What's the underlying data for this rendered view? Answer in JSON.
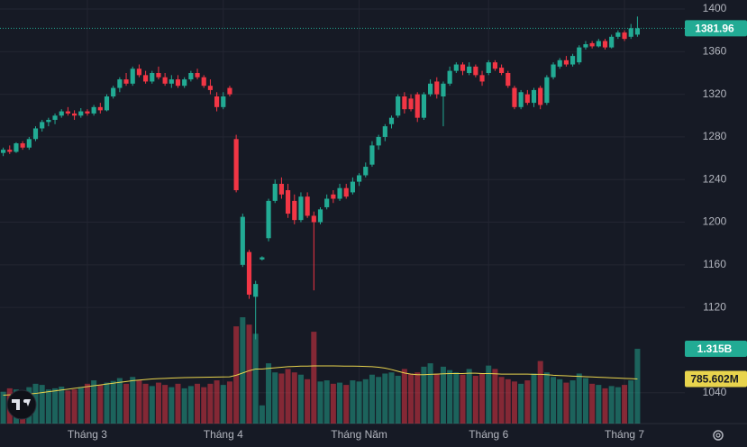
{
  "chart_data": {
    "type": "candlestick",
    "categories": [
      null,
      null,
      null,
      null,
      null,
      null,
      null,
      null,
      null,
      null,
      null,
      null,
      null,
      "Tháng 3",
      null,
      null,
      null,
      null,
      null,
      null,
      null,
      null,
      null,
      null,
      null,
      null,
      null,
      null,
      null,
      null,
      null,
      null,
      null,
      null,
      "Tháng 4",
      null,
      null,
      null,
      null,
      null,
      null,
      null,
      null,
      null,
      null,
      null,
      null,
      null,
      null,
      null,
      null,
      null,
      null,
      null,
      null,
      "Tháng Năm",
      null,
      null,
      null,
      null,
      null,
      null,
      null,
      null,
      null,
      null,
      null,
      null,
      null,
      null,
      null,
      null,
      null,
      null,
      null,
      "Tháng 6",
      null,
      null,
      null,
      null,
      null,
      null,
      null,
      null,
      null,
      null,
      null,
      null,
      null,
      null,
      null,
      null,
      null,
      null,
      null,
      null,
      "Tháng 7",
      null,
      null
    ],
    "candles": [
      [
        1265,
        1270,
        1262,
        1268
      ],
      [
        1268,
        1272,
        1264,
        1266
      ],
      [
        1266,
        1275,
        1265,
        1274
      ],
      [
        1274,
        1276,
        1268,
        1270
      ],
      [
        1270,
        1280,
        1268,
        1278
      ],
      [
        1278,
        1290,
        1276,
        1288
      ],
      [
        1288,
        1296,
        1285,
        1294
      ],
      [
        1294,
        1298,
        1290,
        1296
      ],
      [
        1296,
        1302,
        1292,
        1300
      ],
      [
        1300,
        1306,
        1298,
        1304
      ],
      [
        1304,
        1308,
        1300,
        1302
      ],
      [
        1302,
        1305,
        1296,
        1300
      ],
      [
        1300,
        1307,
        1298,
        1304
      ],
      [
        1304,
        1306,
        1300,
        1302
      ],
      [
        1302,
        1310,
        1300,
        1308
      ],
      [
        1308,
        1312,
        1302,
        1305
      ],
      [
        1305,
        1320,
        1304,
        1318
      ],
      [
        1318,
        1328,
        1316,
        1326
      ],
      [
        1326,
        1336,
        1322,
        1334
      ],
      [
        1334,
        1340,
        1328,
        1330
      ],
      [
        1330,
        1346,
        1328,
        1344
      ],
      [
        1344,
        1348,
        1336,
        1338
      ],
      [
        1338,
        1342,
        1330,
        1332
      ],
      [
        1332,
        1342,
        1330,
        1340
      ],
      [
        1340,
        1346,
        1334,
        1336
      ],
      [
        1336,
        1340,
        1328,
        1330
      ],
      [
        1330,
        1338,
        1326,
        1334
      ],
      [
        1334,
        1338,
        1326,
        1328
      ],
      [
        1328,
        1336,
        1326,
        1334
      ],
      [
        1334,
        1342,
        1332,
        1340
      ],
      [
        1340,
        1344,
        1334,
        1336
      ],
      [
        1336,
        1338,
        1326,
        1328
      ],
      [
        1328,
        1334,
        1320,
        1324
      ],
      [
        1318,
        1322,
        1304,
        1308
      ],
      [
        1308,
        1322,
        1306,
        1318
      ],
      [
        1326,
        1328,
        1318,
        1320
      ],
      [
        1278,
        1282,
        1228,
        1230
      ],
      [
        1160,
        1208,
        1158,
        1205
      ],
      [
        1172,
        1174,
        1128,
        1132
      ],
      [
        1130,
        1145,
        1090,
        1142
      ],
      [
        1165,
        1168,
        1164,
        1167
      ],
      [
        1185,
        1222,
        1182,
        1220
      ],
      [
        1220,
        1240,
        1218,
        1236
      ],
      [
        1236,
        1242,
        1222,
        1226
      ],
      [
        1230,
        1236,
        1204,
        1208
      ],
      [
        1220,
        1226,
        1198,
        1202
      ],
      [
        1202,
        1228,
        1200,
        1224
      ],
      [
        1224,
        1228,
        1204,
        1206
      ],
      [
        1206,
        1210,
        1136,
        1200
      ],
      [
        1200,
        1214,
        1198,
        1212
      ],
      [
        1214,
        1226,
        1212,
        1222
      ],
      [
        1226,
        1230,
        1218,
        1222
      ],
      [
        1222,
        1236,
        1220,
        1232
      ],
      [
        1232,
        1236,
        1222,
        1224
      ],
      [
        1228,
        1242,
        1226,
        1238
      ],
      [
        1238,
        1246,
        1234,
        1244
      ],
      [
        1244,
        1256,
        1242,
        1252
      ],
      [
        1254,
        1276,
        1252,
        1272
      ],
      [
        1272,
        1282,
        1268,
        1280
      ],
      [
        1280,
        1292,
        1276,
        1290
      ],
      [
        1292,
        1300,
        1288,
        1298
      ],
      [
        1300,
        1320,
        1298,
        1318
      ],
      [
        1318,
        1322,
        1302,
        1306
      ],
      [
        1316,
        1320,
        1304,
        1306
      ],
      [
        1320,
        1322,
        1294,
        1298
      ],
      [
        1298,
        1322,
        1296,
        1320
      ],
      [
        1320,
        1334,
        1318,
        1330
      ],
      [
        1332,
        1336,
        1316,
        1320
      ],
      [
        1318,
        1332,
        1290,
        1330
      ],
      [
        1330,
        1346,
        1328,
        1342
      ],
      [
        1342,
        1350,
        1340,
        1348
      ],
      [
        1348,
        1350,
        1338,
        1342
      ],
      [
        1340,
        1350,
        1338,
        1346
      ],
      [
        1346,
        1348,
        1336,
        1338
      ],
      [
        1338,
        1342,
        1328,
        1332
      ],
      [
        1340,
        1352,
        1338,
        1350
      ],
      [
        1350,
        1352,
        1342,
        1344
      ],
      [
        1345,
        1348,
        1338,
        1340
      ],
      [
        1340,
        1342,
        1326,
        1328
      ],
      [
        1326,
        1328,
        1306,
        1308
      ],
      [
        1308,
        1324,
        1306,
        1322
      ],
      [
        1320,
        1324,
        1310,
        1312
      ],
      [
        1312,
        1326,
        1308,
        1324
      ],
      [
        1326,
        1328,
        1306,
        1310
      ],
      [
        1312,
        1338,
        1310,
        1336
      ],
      [
        1336,
        1350,
        1334,
        1348
      ],
      [
        1346,
        1354,
        1344,
        1352
      ],
      [
        1352,
        1356,
        1346,
        1348
      ],
      [
        1348,
        1358,
        1346,
        1356
      ],
      [
        1350,
        1366,
        1348,
        1364
      ],
      [
        1364,
        1370,
        1362,
        1367
      ],
      [
        1368,
        1370,
        1363,
        1365
      ],
      [
        1365,
        1372,
        1364,
        1370
      ],
      [
        1370,
        1372,
        1362,
        1364
      ],
      [
        1364,
        1376,
        1363,
        1374
      ],
      [
        1374,
        1380,
        1372,
        1378
      ],
      [
        1378,
        1380,
        1370,
        1372
      ],
      [
        1374,
        1386,
        1372,
        1382
      ],
      [
        1376,
        1393,
        1374,
        1381.96
      ]
    ],
    "ylim": [
      1011,
      1408.5
    ],
    "yticks": [
      1040,
      1120,
      1160,
      1200,
      1240,
      1280,
      1320,
      1360,
      1400
    ],
    "up_color": "#22ab94",
    "down_color": "#f23645",
    "grid": true,
    "last_price_line": true,
    "volume": {
      "values": [
        560,
        620,
        600,
        580,
        640,
        700,
        680,
        600,
        620,
        650,
        580,
        600,
        640,
        700,
        760,
        680,
        720,
        750,
        800,
        700,
        820,
        760,
        700,
        660,
        720,
        680,
        640,
        700,
        620,
        660,
        700,
        640,
        700,
        760,
        680,
        740,
        1710,
        1870,
        1740,
        1580,
        320,
        1060,
        900,
        880,
        960,
        900,
        860,
        780,
        1615,
        740,
        760,
        700,
        720,
        680,
        760,
        740,
        780,
        860,
        820,
        880,
        900,
        840,
        960,
        880,
        900,
        1000,
        1060,
        880,
        1000,
        940,
        900,
        860,
        960,
        840,
        880,
        1020,
        960,
        820,
        780,
        740,
        700,
        760,
        880,
        1100,
        900,
        820,
        780,
        720,
        760,
        880,
        800,
        700,
        680,
        620,
        660,
        640,
        680,
        760,
        1315
      ],
      "value_labels": [
        null,
        null,
        null,
        null,
        null,
        null,
        null,
        null,
        null,
        null,
        null,
        null,
        null,
        null,
        null,
        null,
        null,
        null,
        null,
        null,
        null,
        null,
        null,
        null,
        null,
        null,
        null,
        null,
        null,
        null,
        null,
        null,
        null,
        null,
        null,
        null,
        null,
        null,
        null,
        null,
        null,
        null,
        null,
        null,
        null,
        null,
        null,
        null,
        null,
        null,
        null,
        null,
        null,
        null,
        null,
        null,
        null,
        null,
        null,
        null,
        null,
        null,
        null,
        null,
        null,
        null,
        null,
        null,
        null,
        null,
        null,
        null,
        null,
        null,
        null,
        null,
        null,
        null,
        null,
        null,
        null,
        null,
        null,
        null,
        null,
        null,
        null,
        null,
        null,
        null,
        null,
        null,
        null,
        null,
        null,
        null,
        null,
        null,
        "1.315B"
      ],
      "ylim": [
        0,
        7450
      ]
    },
    "volume_ma": {
      "color": "#e8d44d",
      "values": [
        500,
        505,
        510,
        515,
        520,
        530,
        545,
        560,
        575,
        590,
        605,
        620,
        635,
        650,
        665,
        680,
        695,
        710,
        725,
        740,
        755,
        765,
        775,
        785,
        790,
        795,
        800,
        805,
        808,
        810,
        812,
        814,
        816,
        818,
        820,
        822,
        850,
        890,
        930,
        960,
        960,
        970,
        980,
        990,
        1000,
        1005,
        1010,
        1010,
        1015,
        1015,
        1015,
        1015,
        1012,
        1010,
        1010,
        1008,
        1005,
        1000,
        990,
        975,
        950,
        920,
        890,
        870,
        860,
        860,
        865,
        870,
        875,
        880,
        880,
        880,
        885,
        885,
        880,
        880,
        875,
        870,
        870,
        870,
        870,
        870,
        865,
        865,
        860,
        850,
        845,
        840,
        835,
        830,
        825,
        820,
        815,
        810,
        805,
        800,
        795,
        790,
        785.602
      ],
      "value_labels": [
        null,
        null,
        null,
        null,
        null,
        null,
        null,
        null,
        null,
        null,
        null,
        null,
        null,
        null,
        null,
        null,
        null,
        null,
        null,
        null,
        null,
        null,
        null,
        null,
        null,
        null,
        null,
        null,
        null,
        null,
        null,
        null,
        null,
        null,
        null,
        null,
        null,
        null,
        null,
        null,
        null,
        null,
        null,
        null,
        null,
        null,
        null,
        null,
        null,
        null,
        null,
        null,
        null,
        null,
        null,
        null,
        null,
        null,
        null,
        null,
        null,
        null,
        null,
        null,
        null,
        null,
        null,
        null,
        null,
        null,
        null,
        null,
        null,
        null,
        null,
        null,
        null,
        null,
        null,
        null,
        null,
        null,
        null,
        null,
        null,
        null,
        null,
        null,
        null,
        null,
        null,
        null,
        null,
        null,
        null,
        null,
        null,
        null,
        "785.602M"
      ]
    }
  }
}
